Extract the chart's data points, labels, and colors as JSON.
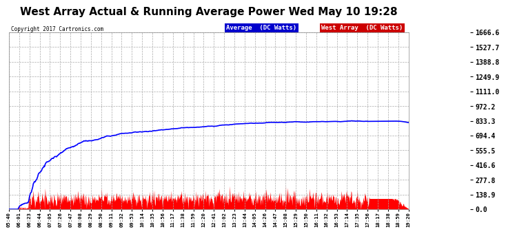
{
  "title": "West Array Actual & Running Average Power Wed May 10 19:28",
  "copyright": "Copyright 2017 Cartronics.com",
  "ylabel_ticks": [
    0.0,
    138.9,
    277.8,
    416.6,
    555.5,
    694.4,
    833.3,
    972.2,
    1111.0,
    1249.9,
    1388.8,
    1527.7,
    1666.6
  ],
  "ymax": 1666.6,
  "ymin": 0.0,
  "legend_avg_label": "Average  (DC Watts)",
  "legend_west_label": "West Array  (DC Watts)",
  "red_color": "#ff0000",
  "blue_color": "#0000ff",
  "legend_avg_bg": "#0000cc",
  "legend_west_bg": "#cc0000",
  "fig_bg_color": "#ffffff",
  "plot_bg_color": "#ffffff",
  "grid_color": "#aaaaaa",
  "title_fontsize": 11,
  "copy_fontsize": 5.5,
  "tick_fontsize": 5.2,
  "ytick_fontsize": 7,
  "x_labels": [
    "05:40",
    "06:01",
    "06:23",
    "06:44",
    "07:05",
    "07:26",
    "07:47",
    "08:08",
    "08:29",
    "08:50",
    "09:11",
    "09:32",
    "09:53",
    "10:14",
    "10:35",
    "10:56",
    "11:17",
    "11:38",
    "11:59",
    "12:20",
    "12:41",
    "13:02",
    "13:23",
    "13:44",
    "14:05",
    "14:26",
    "14:47",
    "15:08",
    "15:29",
    "15:50",
    "16:11",
    "16:32",
    "16:53",
    "17:14",
    "17:35",
    "17:56",
    "18:17",
    "18:38",
    "18:59",
    "19:20"
  ]
}
